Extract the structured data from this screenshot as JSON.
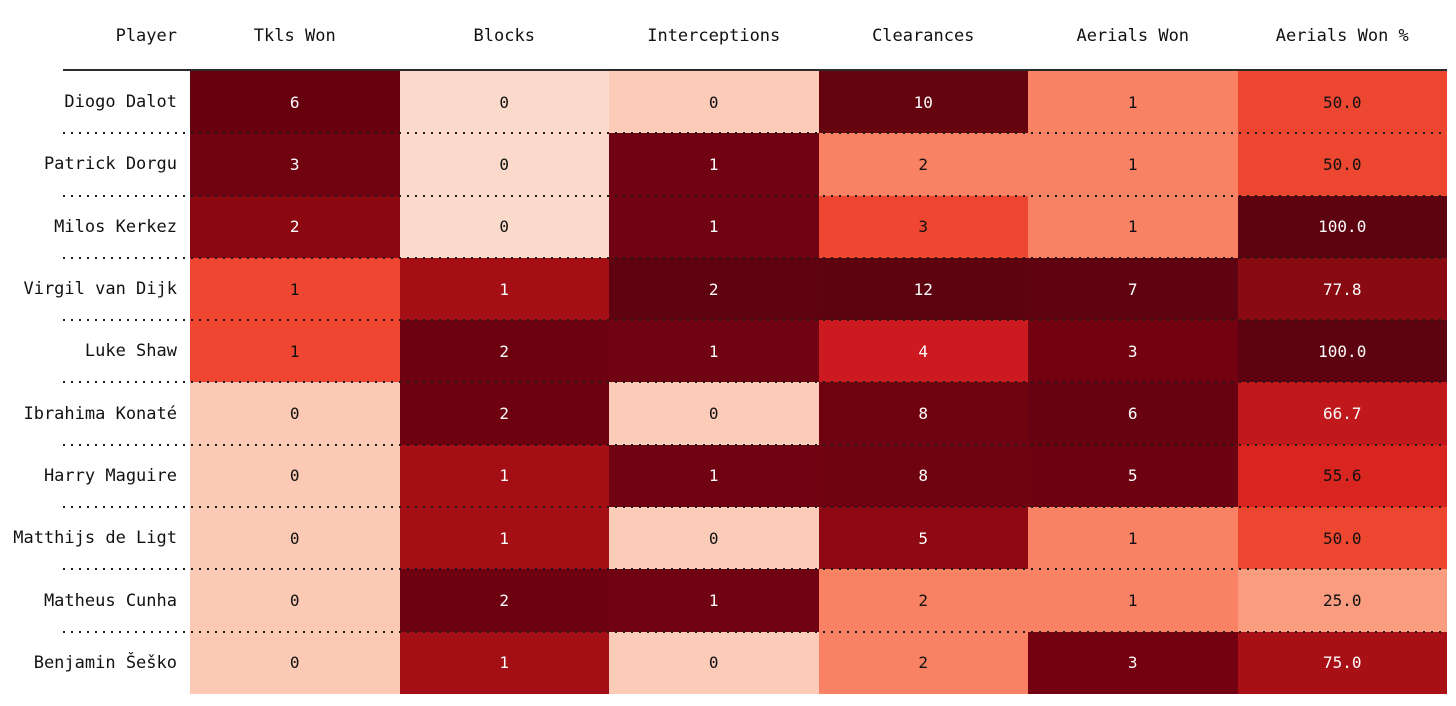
{
  "table": {
    "columns": [
      "Player",
      "Tkls Won",
      "Blocks",
      "Interceptions",
      "Clearances",
      "Aerials Won",
      "Aerials Won %"
    ],
    "header_rule_color": "#2b2b2b",
    "row_separator_style": "dotted",
    "row_separator_color": "#1c1c1c",
    "background": "#ffffff",
    "text_dark": "#111111",
    "text_light": "#fcfcfc"
  },
  "chart_data": {
    "type": "heatmap",
    "title": "",
    "colormap": "Reds",
    "columns": [
      "Tkls Won",
      "Blocks",
      "Interceptions",
      "Clearances",
      "Aerials Won",
      "Aerials Won %"
    ],
    "rows": [
      {
        "player": "Diogo Dalot",
        "values": [
          6,
          0,
          0,
          10,
          1,
          50.0
        ],
        "display": [
          "6",
          "0",
          "0",
          "10",
          "1",
          "50.0"
        ],
        "bg": [
          "#67000d",
          "#fcdacb",
          "#fcccb8",
          "#65030f",
          "#f98264",
          "#ee4731"
        ],
        "fg": [
          "#fcfcfc",
          "#111111",
          "#111111",
          "#fcfcfc",
          "#111111",
          "#111111"
        ]
      },
      {
        "player": "Patrick Dorgu",
        "values": [
          3,
          0,
          1,
          2,
          1,
          50.0
        ],
        "display": [
          "3",
          "0",
          "1",
          "2",
          "1",
          "50.0"
        ],
        "bg": [
          "#710310",
          "#fcdacb",
          "#700211",
          "#f98264",
          "#f98264",
          "#ee4731"
        ],
        "fg": [
          "#fcfcfc",
          "#111111",
          "#fcfcfc",
          "#111111",
          "#111111",
          "#111111"
        ]
      },
      {
        "player": "Milos Kerkez",
        "values": [
          2,
          0,
          1,
          3,
          1,
          100.0
        ],
        "display": [
          "2",
          "0",
          "1",
          "3",
          "1",
          "100.0"
        ],
        "bg": [
          "#8c0912",
          "#fcdacb",
          "#700211",
          "#ee4630",
          "#f98264",
          "#5c030f"
        ],
        "fg": [
          "#fcfcfc",
          "#111111",
          "#fcfcfc",
          "#111111",
          "#111111",
          "#fcfcfc"
        ]
      },
      {
        "player": "Virgil van Dijk",
        "values": [
          1,
          1,
          2,
          12,
          7,
          77.8
        ],
        "display": [
          "1",
          "1",
          "2",
          "12",
          "7",
          "77.8"
        ],
        "bg": [
          "#ef4631",
          "#a30f15",
          "#600310",
          "#5c030f",
          "#600310",
          "#8a0a12"
        ],
        "fg": [
          "#111111",
          "#fcfcfc",
          "#fcfcfc",
          "#fcfcfc",
          "#fcfcfc",
          "#fcfcfc"
        ]
      },
      {
        "player": "Luke Shaw",
        "values": [
          1,
          2,
          1,
          4,
          3,
          100.0
        ],
        "display": [
          "1",
          "2",
          "1",
          "4",
          "3",
          "100.0"
        ],
        "bg": [
          "#ef4631",
          "#6d0110",
          "#700211",
          "#cd1a20",
          "#730110",
          "#5c030f"
        ],
        "fg": [
          "#111111",
          "#fcfcfc",
          "#fcfcfc",
          "#fcfcfc",
          "#fcfcfc",
          "#fcfcfc"
        ]
      },
      {
        "player": "Ibrahima Konaté",
        "values": [
          0,
          2,
          0,
          8,
          6,
          66.7
        ],
        "display": [
          "0",
          "2",
          "0",
          "8",
          "6",
          "66.7"
        ],
        "bg": [
          "#fcc9b4",
          "#6d0110",
          "#fcccb8",
          "#700310",
          "#670310",
          "#c1181c"
        ],
        "fg": [
          "#111111",
          "#fcfcfc",
          "#111111",
          "#fcfcfc",
          "#fcfcfc",
          "#fcfcfc"
        ]
      },
      {
        "player": "Harry Maguire",
        "values": [
          0,
          1,
          1,
          8,
          5,
          55.6
        ],
        "display": [
          "0",
          "1",
          "1",
          "8",
          "5",
          "55.6"
        ],
        "bg": [
          "#fcc9b4",
          "#a30f15",
          "#700211",
          "#700310",
          "#6d0310",
          "#d8251f"
        ],
        "fg": [
          "#111111",
          "#fcfcfc",
          "#fcfcfc",
          "#fcfcfc",
          "#fcfcfc",
          "#111111"
        ]
      },
      {
        "player": "Matthijs de Ligt",
        "values": [
          0,
          1,
          0,
          5,
          1,
          50.0
        ],
        "display": [
          "0",
          "1",
          "0",
          "5",
          "1",
          "50.0"
        ],
        "bg": [
          "#fcc9b4",
          "#a30f15",
          "#fcccb8",
          "#8f0912",
          "#f98264",
          "#ee4731"
        ],
        "fg": [
          "#111111",
          "#fcfcfc",
          "#111111",
          "#fcfcfc",
          "#111111",
          "#111111"
        ]
      },
      {
        "player": "Matheus Cunha",
        "values": [
          0,
          2,
          1,
          2,
          1,
          25.0
        ],
        "display": [
          "0",
          "2",
          "1",
          "2",
          "1",
          "25.0"
        ],
        "bg": [
          "#fcc9b4",
          "#6d0110",
          "#700211",
          "#f98264",
          "#f98264",
          "#f99c80"
        ],
        "fg": [
          "#111111",
          "#fcfcfc",
          "#fcfcfc",
          "#111111",
          "#111111",
          "#111111"
        ]
      },
      {
        "player": "Benjamin Šeško",
        "values": [
          0,
          1,
          0,
          2,
          3,
          75.0
        ],
        "display": [
          "0",
          "1",
          "0",
          "2",
          "3",
          "75.0"
        ],
        "bg": [
          "#fcc9b4",
          "#a30f15",
          "#fcccb8",
          "#f98264",
          "#730110",
          "#a81016"
        ],
        "fg": [
          "#111111",
          "#fcfcfc",
          "#111111",
          "#111111",
          "#fcfcfc",
          "#fcfcfc"
        ]
      }
    ]
  }
}
